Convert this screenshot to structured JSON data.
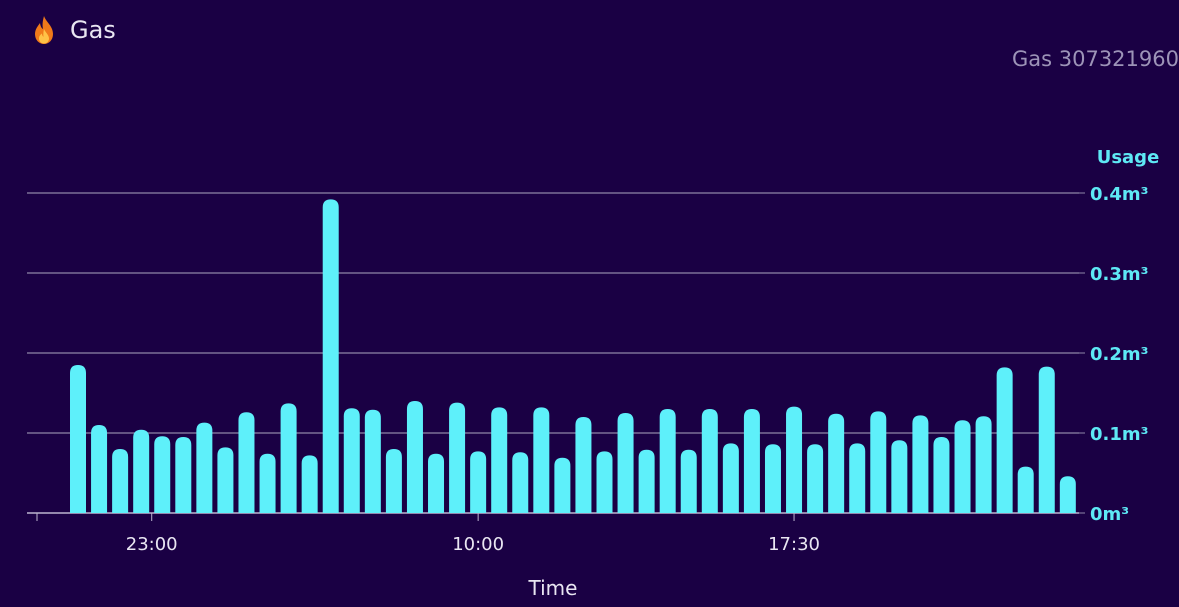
{
  "card": {
    "title": "Gas",
    "icon": "flame-icon",
    "legend_label": "Gas 307321960"
  },
  "colors": {
    "background": "#1a0044",
    "bar": "#5ef0fa",
    "axis_text": "#5ee9f5",
    "grid": "#8f86a8"
  },
  "chart_data": {
    "type": "bar",
    "title": "",
    "xlabel": "Time",
    "ylabel": "Usage",
    "y_unit": "m³",
    "ylim": [
      0,
      0.4
    ],
    "y_axis_position": "right",
    "grid": true,
    "y_ticks": [
      "0m³",
      "0.1m³",
      "0.2m³",
      "0.3m³",
      "0.4m³"
    ],
    "x_ticks": [
      {
        "label": "23:00",
        "index": 3.5
      },
      {
        "label": "10:00",
        "index": 19
      },
      {
        "label": "17:30",
        "index": 34
      }
    ],
    "values": [
      0.185,
      0.11,
      0.08,
      0.104,
      0.096,
      0.095,
      0.113,
      0.082,
      0.126,
      0.074,
      0.137,
      0.072,
      0.392,
      0.131,
      0.129,
      0.08,
      0.14,
      0.074,
      0.138,
      0.077,
      0.132,
      0.076,
      0.132,
      0.069,
      0.12,
      0.077,
      0.125,
      0.079,
      0.13,
      0.079,
      0.13,
      0.087,
      0.13,
      0.086,
      0.133,
      0.086,
      0.124,
      0.087,
      0.127,
      0.091,
      0.122,
      0.095,
      0.116,
      0.121,
      0.182,
      0.058,
      0.183,
      0.046
    ]
  }
}
